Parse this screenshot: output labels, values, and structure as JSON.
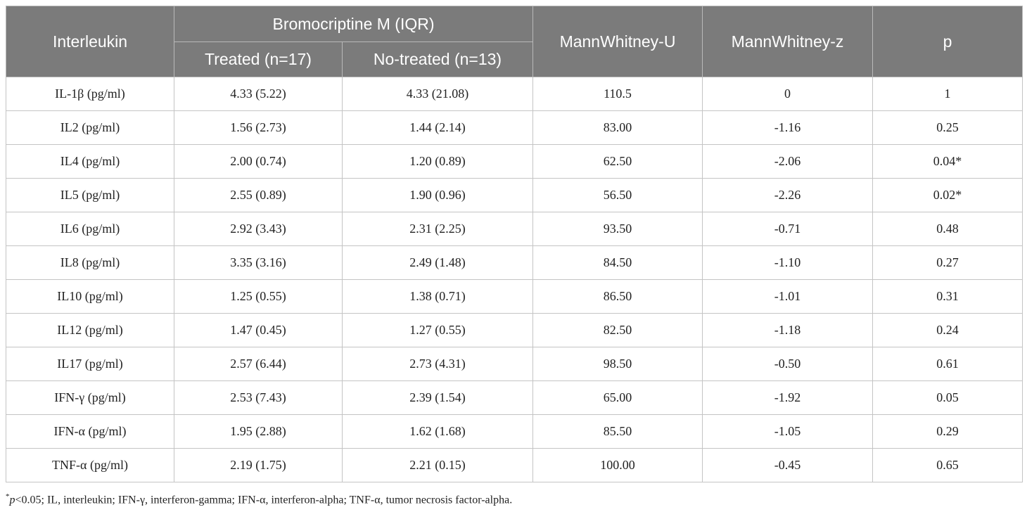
{
  "table": {
    "header": {
      "interleukin": "Interleukin",
      "group": "Bromocriptine M (IQR)",
      "treated": "Treated (n=17)",
      "no_treated": "No-treated (n=13)",
      "mw_u": "MannWhitney-U",
      "mw_z": "MannWhitney-z",
      "p": "p"
    },
    "rows": [
      {
        "name": "IL-1β (pg/ml)",
        "treated": "4.33 (5.22)",
        "no_treated": "4.33 (21.08)",
        "u": "110.5",
        "z": "0",
        "p": "1"
      },
      {
        "name": "IL2 (pg/ml)",
        "treated": "1.56 (2.73)",
        "no_treated": "1.44 (2.14)",
        "u": "83.00",
        "z": "-1.16",
        "p": "0.25"
      },
      {
        "name": "IL4 (pg/ml)",
        "treated": "2.00 (0.74)",
        "no_treated": "1.20 (0.89)",
        "u": "62.50",
        "z": "-2.06",
        "p": "0.04*"
      },
      {
        "name": "IL5 (pg/ml)",
        "treated": "2.55 (0.89)",
        "no_treated": "1.90 (0.96)",
        "u": "56.50",
        "z": "-2.26",
        "p": "0.02*"
      },
      {
        "name": "IL6 (pg/ml)",
        "treated": "2.92 (3.43)",
        "no_treated": "2.31 (2.25)",
        "u": "93.50",
        "z": "-0.71",
        "p": "0.48"
      },
      {
        "name": "IL8 (pg/ml)",
        "treated": "3.35 (3.16)",
        "no_treated": "2.49 (1.48)",
        "u": "84.50",
        "z": "-1.10",
        "p": "0.27"
      },
      {
        "name": "IL10 (pg/ml)",
        "treated": "1.25 (0.55)",
        "no_treated": "1.38 (0.71)",
        "u": "86.50",
        "z": "-1.01",
        "p": "0.31"
      },
      {
        "name": "IL12 (pg/ml)",
        "treated": "1.47 (0.45)",
        "no_treated": "1.27 (0.55)",
        "u": "82.50",
        "z": "-1.18",
        "p": "0.24"
      },
      {
        "name": "IL17 (pg/ml)",
        "treated": "2.57 (6.44)",
        "no_treated": "2.73 (4.31)",
        "u": "98.50",
        "z": "-0.50",
        "p": "0.61"
      },
      {
        "name": "IFN-γ (pg/ml)",
        "treated": "2.53 (7.43)",
        "no_treated": "2.39 (1.54)",
        "u": "65.00",
        "z": "-1.92",
        "p": "0.05"
      },
      {
        "name": "IFN-α (pg/ml)",
        "treated": "1.95 (2.88)",
        "no_treated": "1.62 (1.68)",
        "u": "85.50",
        "z": "-1.05",
        "p": "0.29"
      },
      {
        "name": "TNF-α (pg/ml)",
        "treated": "2.19 (1.75)",
        "no_treated": "2.21 (0.15)",
        "u": "100.00",
        "z": "-0.45",
        "p": "0.65"
      }
    ]
  },
  "footnote": {
    "mark": "*",
    "p_symbol": "p",
    "text": "<0.05; IL, interleukin; IFN-γ, interferon-gamma; IFN-α, interferon-alpha; TNF-α, tumor necrosis factor-alpha."
  }
}
